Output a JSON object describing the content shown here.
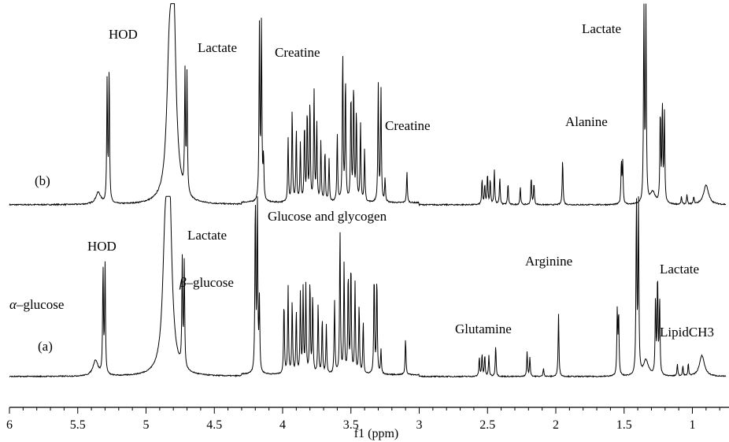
{
  "chart_data": {
    "type": "line",
    "title": "",
    "xlabel": "f1 (ppm)",
    "ylabel": "",
    "xlim": [
      6.0,
      0.72
    ],
    "x_reversed": true,
    "grid": false,
    "legend": "none",
    "line_color": "#000000",
    "x_ticks": [
      "6",
      "5.5",
      "5",
      "4.5",
      "4",
      "3.5",
      "3",
      "2.5",
      "2",
      "1.5",
      "1"
    ],
    "series": [
      {
        "name": "(b)",
        "peaks": [
          [
            5.35,
            0.06
          ],
          [
            5.285,
            0.62
          ],
          [
            5.27,
            0.68
          ],
          [
            4.83,
            0.58
          ],
          [
            4.8,
            1.0
          ],
          [
            4.715,
            0.6
          ],
          [
            4.7,
            0.6
          ],
          [
            4.17,
            0.88
          ],
          [
            4.155,
            0.91
          ],
          [
            4.14,
            0.22
          ],
          [
            3.96,
            0.33
          ],
          [
            3.93,
            0.48
          ],
          [
            3.9,
            0.37
          ],
          [
            3.87,
            0.3
          ],
          [
            3.84,
            0.4
          ],
          [
            3.82,
            0.47
          ],
          [
            3.8,
            0.52
          ],
          [
            3.77,
            0.57
          ],
          [
            3.75,
            0.41
          ],
          [
            3.72,
            0.31
          ],
          [
            3.69,
            0.27
          ],
          [
            3.66,
            0.22
          ],
          [
            3.6,
            0.35
          ],
          [
            3.56,
            0.77
          ],
          [
            3.54,
            0.64
          ],
          [
            3.5,
            0.56
          ],
          [
            3.48,
            0.61
          ],
          [
            3.46,
            0.47
          ],
          [
            3.43,
            0.41
          ],
          [
            3.4,
            0.27
          ],
          [
            3.3,
            0.6
          ],
          [
            3.28,
            0.58
          ],
          [
            3.25,
            0.12
          ],
          [
            3.09,
            0.16
          ],
          [
            2.54,
            0.13
          ],
          [
            2.52,
            0.1
          ],
          [
            2.5,
            0.16
          ],
          [
            2.48,
            0.13
          ],
          [
            2.45,
            0.18
          ],
          [
            2.41,
            0.14
          ],
          [
            2.35,
            0.11
          ],
          [
            2.26,
            0.09
          ],
          [
            2.18,
            0.14
          ],
          [
            2.16,
            0.11
          ],
          [
            1.95,
            0.24
          ],
          [
            1.52,
            0.22
          ],
          [
            1.51,
            0.21
          ],
          [
            1.355,
            1.0
          ],
          [
            1.34,
            1.0
          ],
          [
            1.29,
            0.06
          ],
          [
            1.235,
            0.47
          ],
          [
            1.22,
            0.5
          ],
          [
            1.205,
            0.46
          ],
          [
            1.08,
            0.04
          ],
          [
            1.04,
            0.05
          ],
          [
            0.99,
            0.04
          ],
          [
            0.9,
            0.1
          ]
        ]
      },
      {
        "name": "(a)",
        "peaks": [
          [
            5.37,
            0.09
          ],
          [
            5.315,
            0.61
          ],
          [
            5.3,
            0.62
          ],
          [
            4.86,
            0.62
          ],
          [
            4.83,
            1.0
          ],
          [
            4.735,
            0.6
          ],
          [
            4.72,
            0.6
          ],
          [
            4.2,
            1.0
          ],
          [
            4.185,
            1.0
          ],
          [
            4.17,
            0.4
          ],
          [
            3.99,
            0.42
          ],
          [
            3.96,
            0.5
          ],
          [
            3.93,
            0.42
          ],
          [
            3.9,
            0.36
          ],
          [
            3.87,
            0.46
          ],
          [
            3.85,
            0.48
          ],
          [
            3.83,
            0.5
          ],
          [
            3.8,
            0.54
          ],
          [
            3.78,
            0.45
          ],
          [
            3.74,
            0.4
          ],
          [
            3.71,
            0.32
          ],
          [
            3.68,
            0.28
          ],
          [
            3.62,
            0.42
          ],
          [
            3.58,
            0.83
          ],
          [
            3.55,
            0.63
          ],
          [
            3.52,
            0.58
          ],
          [
            3.5,
            0.64
          ],
          [
            3.47,
            0.52
          ],
          [
            3.44,
            0.4
          ],
          [
            3.41,
            0.3
          ],
          [
            3.33,
            0.58
          ],
          [
            3.31,
            0.56
          ],
          [
            3.28,
            0.14
          ],
          [
            3.1,
            0.21
          ],
          [
            2.56,
            0.11
          ],
          [
            2.54,
            0.13
          ],
          [
            2.52,
            0.12
          ],
          [
            2.49,
            0.12
          ],
          [
            2.44,
            0.18
          ],
          [
            2.21,
            0.14
          ],
          [
            2.19,
            0.11
          ],
          [
            2.09,
            0.05
          ],
          [
            1.98,
            0.36
          ],
          [
            1.55,
            0.37
          ],
          [
            1.54,
            0.35
          ],
          [
            1.41,
            1.0
          ],
          [
            1.395,
            1.0
          ],
          [
            1.34,
            0.09
          ],
          [
            1.27,
            0.43
          ],
          [
            1.255,
            0.57
          ],
          [
            1.24,
            0.43
          ],
          [
            1.11,
            0.07
          ],
          [
            1.07,
            0.06
          ],
          [
            1.03,
            0.07
          ],
          [
            0.93,
            0.12
          ]
        ]
      }
    ],
    "annotations": {
      "b_hod": "HOD",
      "b_lactate_1": "Lactate",
      "b_creatine_1": "Creatine",
      "b_creatine_2": "Creatine",
      "b_alanine": "Alanine",
      "b_lactate_2": "Lactate",
      "b_label": "(b)",
      "a_hod": "HOD",
      "a_lactate_1": "Lactate",
      "a_glucose_glycogen": "Glucose and glycogen",
      "a_arginine": "Arginine",
      "a_lactate_2": "Lactate",
      "a_alpha_prefix": "α",
      "a_alpha_rest": "–glucose",
      "a_beta_prefix": "β",
      "a_beta_rest": "–glucose",
      "a_glutamine": "Glutamine",
      "a_lipid": "LipidCH3",
      "a_label": "(a)"
    }
  }
}
